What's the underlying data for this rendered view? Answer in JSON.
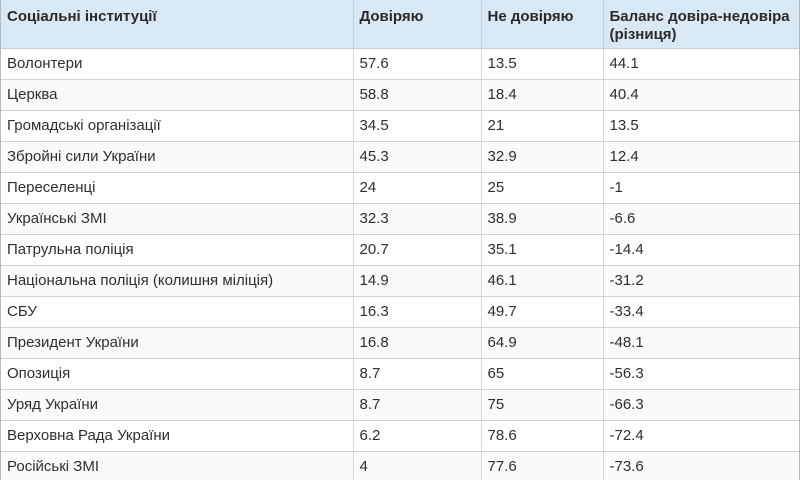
{
  "header": {
    "col_institution": "Соціальні інституції",
    "col_trust": "Довіряю",
    "col_distrust": "Не довіряю",
    "col_balance": "Баланс довіра-недовіра (різниця)"
  },
  "rows": [
    {
      "institution": "Волонтери",
      "trust": "57.6",
      "distrust": "13.5",
      "balance": "44.1"
    },
    {
      "institution": "Церква",
      "trust": "58.8",
      "distrust": "18.4",
      "balance": "40.4"
    },
    {
      "institution": "Громадські організації",
      "trust": "34.5",
      "distrust": "21",
      "balance": "13.5"
    },
    {
      "institution": "Збройні сили України",
      "trust": "45.3",
      "distrust": "32.9",
      "balance": "12.4"
    },
    {
      "institution": "Переселенці",
      "trust": "24",
      "distrust": "25",
      "balance": "-1"
    },
    {
      "institution": "Українські ЗМІ",
      "trust": "32.3",
      "distrust": "38.9",
      "balance": "-6.6"
    },
    {
      "institution": "Патрульна поліція",
      "trust": "20.7",
      "distrust": "35.1",
      "balance": "-14.4"
    },
    {
      "institution": "Національна поліція (колишня міліція)",
      "trust": "14.9",
      "distrust": "46.1",
      "balance": "-31.2"
    },
    {
      "institution": "СБУ",
      "trust": "16.3",
      "distrust": "49.7",
      "balance": "-33.4"
    },
    {
      "institution": "Президент України",
      "trust": "16.8",
      "distrust": "64.9",
      "balance": "-48.1"
    },
    {
      "institution": "Опозиція",
      "trust": "8.7",
      "distrust": "65",
      "balance": "-56.3"
    },
    {
      "institution": "Уряд України",
      "trust": "8.7",
      "distrust": "75",
      "balance": "-66.3"
    },
    {
      "institution": "Верховна Рада України",
      "trust": "6.2",
      "distrust": "78.6",
      "balance": "-72.4"
    },
    {
      "institution": "Російські ЗМІ",
      "trust": "4",
      "distrust": "77.6",
      "balance": "-73.6"
    }
  ]
}
